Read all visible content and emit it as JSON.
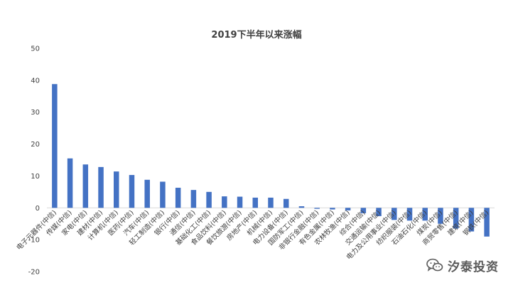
{
  "chart_data": {
    "type": "bar",
    "title": "2019下半年以来涨幅",
    "xlabel": "",
    "ylabel": "",
    "ylim": [
      -20,
      50
    ],
    "yticks": [
      -20,
      -10,
      0,
      10,
      20,
      30,
      40,
      50
    ],
    "grid": false,
    "bar_color": "#4472c4",
    "categories": [
      "电子元器件(中信)",
      "传媒(中信)",
      "家电(中信)",
      "建材(中信)",
      "计算机(中信)",
      "医药(中信)",
      "汽车(中信)",
      "轻工制造(中信)",
      "银行(中信)",
      "通信(中信)",
      "基础化工(中信)",
      "食品饮料(中信)",
      "餐饮旅游(中信)",
      "房地产(中信)",
      "机械(中信)",
      "电力设备(中信)",
      "国防军工(中信)",
      "非银行金融(中信)",
      "有色金属(中信)",
      "农林牧渔(中信)",
      "综合(中信)",
      "交通运输(中信)",
      "电力及公用事业(中信)",
      "纺织服装(中信)",
      "石油石化(中信)",
      "煤炭(中信)",
      "商贸零售(中信)",
      "建筑(中信)",
      "钢铁(中信)"
    ],
    "values": [
      38.8,
      15.5,
      13.6,
      12.8,
      11.4,
      10.3,
      8.8,
      8.2,
      6.3,
      5.6,
      5.0,
      3.6,
      3.5,
      3.2,
      3.2,
      2.8,
      0.5,
      -0.3,
      -0.5,
      -0.8,
      -1.7,
      -2.6,
      -3.8,
      -4.0,
      -4.0,
      -5.0,
      -6.5,
      -7.4,
      -9.0
    ]
  },
  "watermark": {
    "icon": "wechat-icon",
    "text": "汐泰投资"
  }
}
